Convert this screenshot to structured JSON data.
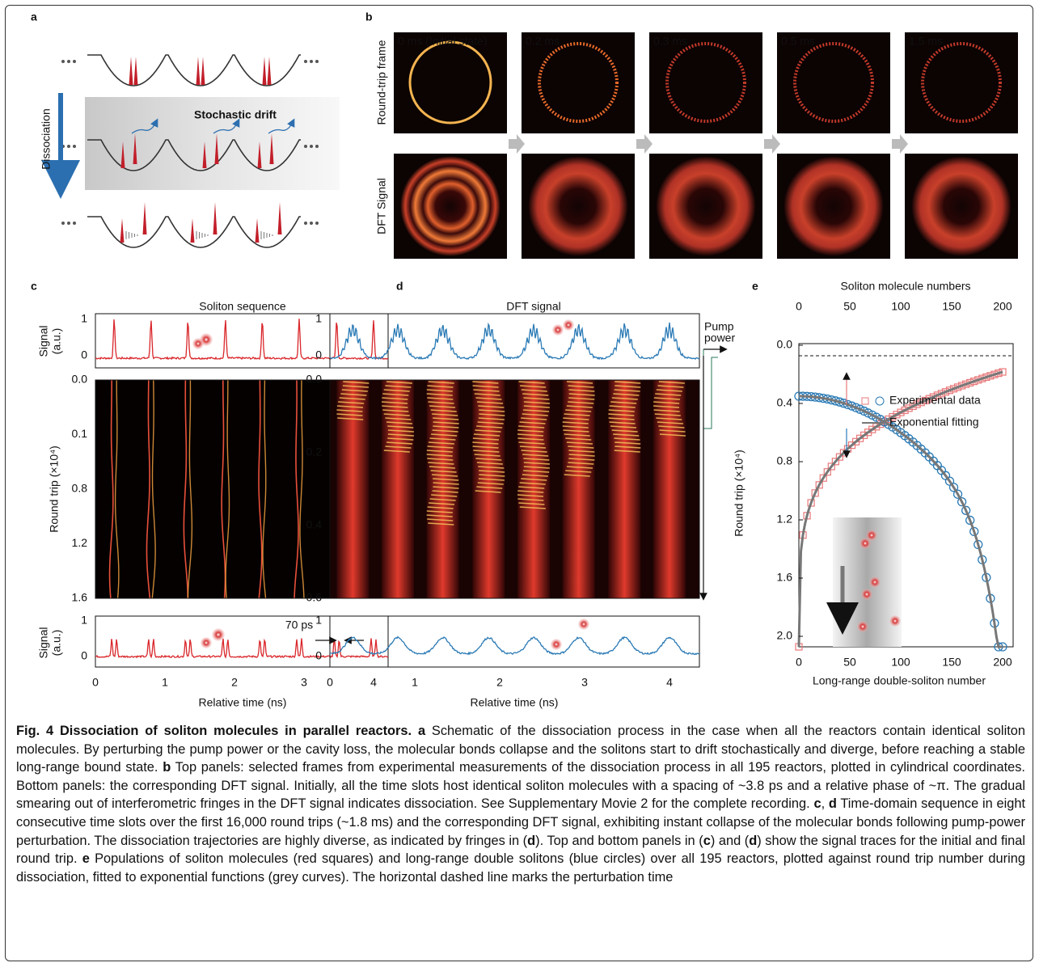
{
  "panel_a": {
    "label": "a",
    "arrow_label": "Dissociation",
    "band_label": "Stochastic drift"
  },
  "panel_b": {
    "label": "b",
    "row_labels": [
      "Round-trip frame",
      "DFT Signal"
    ],
    "frames": [
      "0 ms (Initial state)",
      "0.2 ms",
      "0.3 ms",
      "0.5 ms",
      "1.5 ms"
    ]
  },
  "panel_c": {
    "label": "c",
    "title": "Soliton sequence",
    "signal_label": [
      "Signal",
      "(a.u.)"
    ],
    "top_yticks": [
      "0",
      "1"
    ],
    "map_ylabel": "Round trip (×10⁴)",
    "map_yticks": [
      "0.0",
      "0.1",
      "0.8",
      "1.2",
      "1.6"
    ],
    "bottom_signal_label": [
      "Signal",
      "(a.u.)"
    ],
    "bottom_yticks": [
      "0",
      "1"
    ],
    "annotation": "70 ps",
    "xticks": [
      "0",
      "1",
      "2",
      "3",
      "4"
    ],
    "xlabel": "Relative time (ns)"
  },
  "panel_d": {
    "label": "d",
    "title": "DFT signal",
    "top_yticks": [
      "0",
      "1"
    ],
    "map_yticks": [
      "0.0",
      "0.2",
      "0.4",
      "0.6"
    ],
    "pump_label": [
      "Pump",
      "power"
    ],
    "bottom_yticks": [
      "0",
      "1"
    ],
    "xticks": [
      "0",
      "1",
      "2",
      "3",
      "4"
    ],
    "xlabel": "Relative time (ns)"
  },
  "panel_e": {
    "label": "e",
    "top_xlabel": "Soliton molecule numbers",
    "top_xticks": [
      "0",
      "50",
      "100",
      "150",
      "200"
    ],
    "ylabel": "Round trip (×10⁴)",
    "yticks": [
      "0.0",
      "0.4",
      "0.8",
      "1.2",
      "1.6",
      "2.0"
    ],
    "legend": [
      "Experimental data",
      "Exponential fitting"
    ],
    "bottom_xticks": [
      "0",
      "50",
      "100",
      "150",
      "200"
    ],
    "xlabel": "Long-range double-soliton number"
  },
  "caption": [
    {
      "text": "Fig. 4 Dissociation of soliton molecules in parallel reactors. a",
      "bold": true
    },
    {
      "text": " Schematic of the dissociation process in the case when all the reactors contain identical soliton molecules. By perturbing the pump power or the cavity loss, the molecular bonds collapse and the solitons start to drift stochastically and diverge, before reaching a stable long-range bound state. ",
      "bold": false
    },
    {
      "text": "b",
      "bold": true
    },
    {
      "text": " Top panels: selected frames from experimental measurements of the dissociation process in all 195 reactors, plotted in cylindrical coordinates. Bottom panels: the corresponding DFT signal. Initially, all the time slots host identical soliton molecules with a spacing of ~3.8 ps and a relative phase of ~π. The gradual smearing out of interferometric fringes in the DFT signal indicates dissociation. See Supplementary Movie 2 for the complete recording. ",
      "bold": false
    },
    {
      "text": "c",
      "bold": true
    },
    {
      "text": ", ",
      "bold": false
    },
    {
      "text": "d",
      "bold": true
    },
    {
      "text": " Time-domain sequence in eight consecutive time slots over the first 16,000 round trips (~1.8 ms) and the corresponding DFT signal, exhibiting instant collapse of the molecular bonds following pump-power perturbation. The dissociation trajectories are highly diverse, as indicated by fringes in (",
      "bold": false
    },
    {
      "text": "d",
      "bold": true
    },
    {
      "text": "). Top and bottom panels in (",
      "bold": false
    },
    {
      "text": "c",
      "bold": true
    },
    {
      "text": ") and (",
      "bold": false
    },
    {
      "text": "d",
      "bold": true
    },
    {
      "text": ") show the signal traces for the initial and final round trip. ",
      "bold": false
    },
    {
      "text": "e",
      "bold": true
    },
    {
      "text": " Populations of soliton molecules (red squares) and long-range double solitons (blue circles) over all 195 reactors, plotted against round trip number during dissociation, fitted to exponential functions (grey curves). The horizontal dashed line marks the perturbation time",
      "bold": false
    }
  ]
}
